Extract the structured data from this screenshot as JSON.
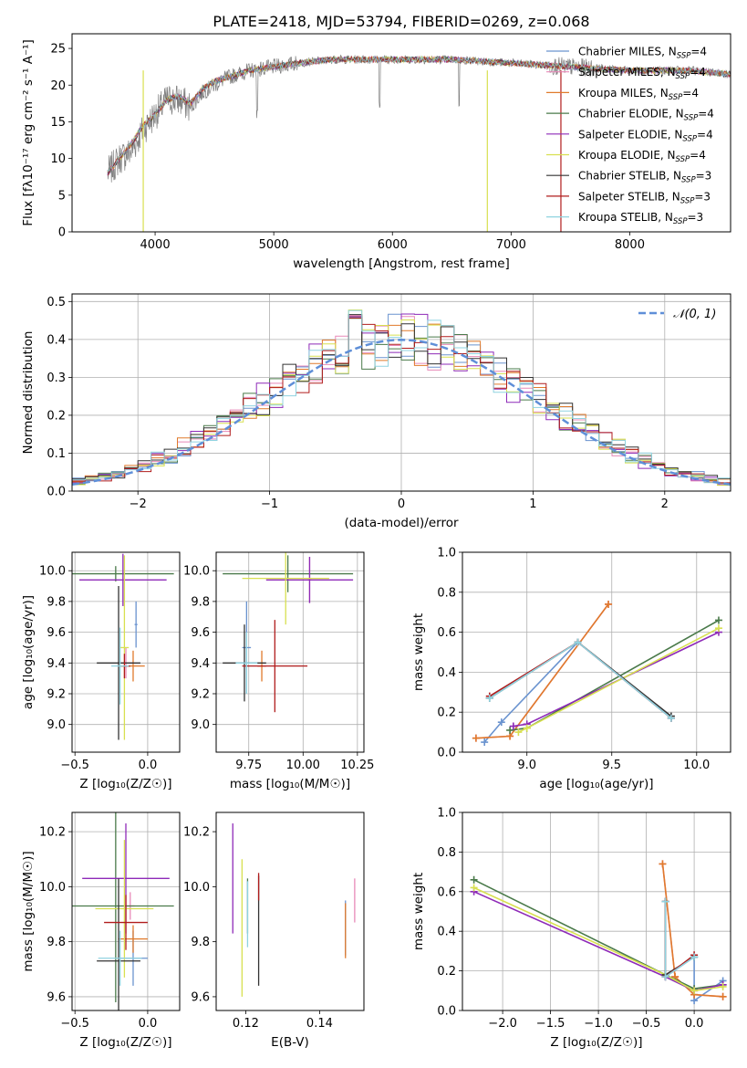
{
  "figure_title": "PLATE=2418, MJD=53794, FIBERID=0269, z=0.068",
  "colors": {
    "Chabrier MILES": "#6a93cf",
    "Salpeter MILES": "#e889b8",
    "Kroupa MILES": "#e07a2b",
    "Chabrier ELODIE": "#4a7a4a",
    "Salpeter ELODIE": "#8e2ab8",
    "Kroupa ELODIE": "#d8e050",
    "Chabrier STELIB": "#333333",
    "Salpeter STELIB": "#b01c1c",
    "Kroupa STELIB": "#8fd3e0",
    "data": "#808080",
    "gaussian": "#5f8fd8"
  },
  "chart_data": [
    {
      "id": "spectrum",
      "type": "line",
      "title": "PLATE=2418, MJD=53794, FIBERID=0269, z=0.068",
      "xlabel": "wavelength [Angstrom, rest frame]",
      "ylabel": "Flux [fλ10⁻¹⁷ erg cm⁻² s⁻¹ A⁻¹]",
      "xlim": [
        3300,
        8850
      ],
      "ylim": [
        0,
        27
      ],
      "xticks": [
        4000,
        5000,
        6000,
        7000,
        8000
      ],
      "yticks": [
        0,
        5,
        10,
        15,
        20,
        25
      ],
      "grid": false,
      "legend_position": "top-right",
      "legend": [
        "Chabrier MILES, N_SSP=4",
        "Salpeter MILES, N_SSP=4",
        "Kroupa MILES, N_SSP=4",
        "Chabrier ELODIE, N_SSP=4",
        "Salpeter ELODIE, N_SSP=4",
        "Kroupa ELODIE, N_SSP=4",
        "Chabrier STELIB, N_SSP=3",
        "Salpeter STELIB, N_SSP=3",
        "Kroupa STELIB, N_SSP=3"
      ],
      "data_curve": {
        "x": [
          3600,
          3700,
          3800,
          3900,
          4000,
          4100,
          4200,
          4300,
          4400,
          4500,
          4600,
          4800,
          5000,
          5200,
          5500,
          6000,
          6500,
          7000,
          7500,
          8000,
          8500,
          8850
        ],
        "y": [
          8,
          10,
          11,
          14,
          16,
          18,
          18,
          17,
          19,
          20,
          21,
          22,
          22.5,
          23,
          23.5,
          23.5,
          23.5,
          23,
          22.5,
          22,
          22,
          21.5
        ]
      },
      "model_curve": {
        "x": [
          3600,
          3700,
          3800,
          3900,
          4000,
          4100,
          4200,
          4300,
          4400,
          4500,
          4600,
          4800,
          5000,
          5200,
          5500,
          6000,
          6500,
          7000,
          7500,
          8000,
          8500,
          8850
        ],
        "y": [
          8,
          10,
          12,
          14.5,
          16,
          18,
          18.5,
          17.5,
          19.5,
          20.5,
          21,
          22,
          22.5,
          23,
          23.5,
          23.5,
          23.5,
          23,
          22.5,
          22,
          22,
          21.5
        ]
      },
      "vertical_drops": [
        {
          "x": 3900,
          "color": "Kroupa ELODIE"
        },
        {
          "x": 6800,
          "color": "Kroupa ELODIE"
        },
        {
          "x": 7420,
          "color": "Salpeter STELIB"
        }
      ]
    },
    {
      "id": "residuals",
      "type": "histogram",
      "xlabel": "(data-model)/error",
      "ylabel": "Normed distribution",
      "xlim": [
        -2.5,
        2.5
      ],
      "ylim": [
        0,
        0.52
      ],
      "xticks": [
        -2,
        -1,
        0,
        1,
        2
      ],
      "yticks": [
        0.0,
        0.1,
        0.2,
        0.3,
        0.4,
        0.5
      ],
      "grid": true,
      "legend": [
        "𝒩(0, 1)"
      ],
      "legend_position": "top-right",
      "bin_width": 0.1
    },
    {
      "id": "age_vs_Z",
      "type": "errorbar",
      "xlabel": "Z [log₁₀(Z/Z☉)]",
      "ylabel": "age [log₁₀(age/yr)]",
      "xlim": [
        -0.52,
        0.22
      ],
      "ylim": [
        8.82,
        10.12
      ],
      "xticks": [
        -0.5,
        0.0
      ],
      "yticks": [
        9.0,
        9.2,
        9.4,
        9.6,
        9.8,
        10.0
      ],
      "grid": true,
      "points": [
        {
          "name": "Chabrier MILES",
          "x": -0.08,
          "y": 9.65,
          "xerr": 0.01,
          "yerr": 0.15
        },
        {
          "name": "Salpeter MILES",
          "x": -0.15,
          "y": 9.4,
          "xerr": 0.05,
          "yerr": 0.1
        },
        {
          "name": "Kroupa MILES",
          "x": -0.1,
          "y": 9.38,
          "xerr": 0.08,
          "yerr": 0.1
        },
        {
          "name": "Chabrier ELODIE",
          "x": -0.22,
          "y": 9.98,
          "xerr": 0.4,
          "yerr": 0.05
        },
        {
          "name": "Salpeter ELODIE",
          "x": -0.17,
          "y": 9.94,
          "xerr": 0.3,
          "yerr": 0.17
        },
        {
          "name": "Kroupa ELODIE",
          "x": -0.16,
          "y": 9.5,
          "xerr": 0.03,
          "yerr": 0.6
        },
        {
          "name": "Chabrier STELIB",
          "x": -0.2,
          "y": 9.4,
          "xerr": 0.15,
          "yerr": 0.5
        },
        {
          "name": "Salpeter STELIB",
          "x": -0.16,
          "y": 9.38,
          "xerr": 0.04,
          "yerr": 0.08
        },
        {
          "name": "Kroupa STELIB",
          "x": -0.19,
          "y": 9.38,
          "xerr": 0.06,
          "yerr": 0.25
        }
      ]
    },
    {
      "id": "age_vs_mass",
      "type": "errorbar",
      "xlabel": "mass [log₁₀(M/M☉)]",
      "ylabel": "",
      "xlim": [
        9.6,
        10.28
      ],
      "ylim": [
        8.82,
        10.12
      ],
      "xticks": [
        9.75,
        10.0,
        10.25
      ],
      "yticks": [
        9.0,
        9.2,
        9.4,
        9.6,
        9.8,
        10.0
      ],
      "grid": true,
      "points": [
        {
          "name": "Chabrier MILES",
          "x": 9.74,
          "y": 9.5,
          "xerr": 0.02,
          "yerr": 0.3
        },
        {
          "name": "Salpeter MILES",
          "x": 10.03,
          "y": 9.94,
          "xerr": 0.01,
          "yerr": 0.15
        },
        {
          "name": "Kroupa MILES",
          "x": 9.81,
          "y": 9.38,
          "xerr": 0.02,
          "yerr": 0.1
        },
        {
          "name": "Chabrier ELODIE",
          "x": 9.93,
          "y": 9.98,
          "xerr": 0.3,
          "yerr": 0.12
        },
        {
          "name": "Salpeter ELODIE",
          "x": 10.03,
          "y": 9.94,
          "xerr": 0.2,
          "yerr": 0.15
        },
        {
          "name": "Kroupa ELODIE",
          "x": 9.92,
          "y": 9.95,
          "xerr": 0.2,
          "yerr": 0.3
        },
        {
          "name": "Chabrier STELIB",
          "x": 9.73,
          "y": 9.4,
          "xerr": 0.1,
          "yerr": 0.25
        },
        {
          "name": "Salpeter STELIB",
          "x": 9.87,
          "y": 9.38,
          "xerr": 0.15,
          "yerr": 0.3
        },
        {
          "name": "Kroupa STELIB",
          "x": 9.74,
          "y": 9.4,
          "xerr": 0.05,
          "yerr": 0.2
        }
      ]
    },
    {
      "id": "weight_vs_age",
      "type": "line",
      "xlabel": "age [log₁₀(age/yr)]",
      "ylabel": "mass weight",
      "xlim": [
        8.62,
        10.2
      ],
      "ylim": [
        0.0,
        1.0
      ],
      "xticks": [
        9.0,
        9.5,
        10.0
      ],
      "yticks": [
        0.0,
        0.2,
        0.4,
        0.6,
        0.8,
        1.0
      ],
      "grid": true,
      "series": [
        {
          "name": "Chabrier MILES",
          "x": [
            8.75,
            8.85,
            9.3,
            9.85
          ],
          "y": [
            0.05,
            0.15,
            0.55,
            0.17
          ]
        },
        {
          "name": "Salpeter MILES",
          "x": [
            8.7,
            8.9,
            9.48
          ],
          "y": [
            0.07,
            0.08,
            0.74
          ]
        },
        {
          "name": "Kroupa MILES",
          "x": [
            8.7,
            8.9,
            9.48
          ],
          "y": [
            0.07,
            0.08,
            0.74
          ]
        },
        {
          "name": "Chabrier ELODIE",
          "x": [
            8.9,
            9.0,
            10.13
          ],
          "y": [
            0.11,
            0.12,
            0.66
          ]
        },
        {
          "name": "Salpeter ELODIE",
          "x": [
            8.92,
            9.0,
            10.13
          ],
          "y": [
            0.13,
            0.14,
            0.6
          ]
        },
        {
          "name": "Kroupa ELODIE",
          "x": [
            8.95,
            9.0,
            10.13
          ],
          "y": [
            0.1,
            0.12,
            0.62
          ]
        },
        {
          "name": "Chabrier STELIB",
          "x": [
            8.78,
            9.3,
            9.85
          ],
          "y": [
            0.27,
            0.55,
            0.18
          ]
        },
        {
          "name": "Salpeter STELIB",
          "x": [
            8.78,
            9.3,
            9.85
          ],
          "y": [
            0.28,
            0.55,
            0.17
          ]
        },
        {
          "name": "Kroupa STELIB",
          "x": [
            8.78,
            9.3,
            9.85
          ],
          "y": [
            0.27,
            0.55,
            0.17
          ]
        }
      ]
    },
    {
      "id": "mass_vs_Z",
      "type": "errorbar",
      "xlabel": "Z [log₁₀(Z/Z☉)]",
      "ylabel": "mass [log₁₀(M/M☉)]",
      "xlim": [
        -0.52,
        0.22
      ],
      "ylim": [
        9.55,
        10.27
      ],
      "xticks": [
        -0.5,
        0.0
      ],
      "yticks": [
        9.6,
        9.8,
        10.0,
        10.2
      ],
      "grid": true,
      "points": [
        {
          "name": "Chabrier MILES",
          "x": -0.1,
          "y": 9.74,
          "xerr": 0.1,
          "yerr": 0.1
        },
        {
          "name": "Salpeter MILES",
          "x": -0.12,
          "y": 9.93,
          "xerr": 0.03,
          "yerr": 0.05
        },
        {
          "name": "Kroupa MILES",
          "x": -0.1,
          "y": 9.81,
          "xerr": 0.1,
          "yerr": 0.05
        },
        {
          "name": "Chabrier ELODIE",
          "x": -0.22,
          "y": 9.93,
          "xerr": 0.4,
          "yerr": 0.35
        },
        {
          "name": "Salpeter ELODIE",
          "x": -0.15,
          "y": 10.03,
          "xerr": 0.3,
          "yerr": 0.2
        },
        {
          "name": "Kroupa ELODIE",
          "x": -0.16,
          "y": 9.92,
          "xerr": 0.2,
          "yerr": 0.25
        },
        {
          "name": "Chabrier STELIB",
          "x": -0.2,
          "y": 9.73,
          "xerr": 0.15,
          "yerr": 0.3
        },
        {
          "name": "Salpeter STELIB",
          "x": -0.15,
          "y": 9.87,
          "xerr": 0.15,
          "yerr": 0.1
        },
        {
          "name": "Kroupa STELIB",
          "x": -0.19,
          "y": 9.74,
          "xerr": 0.15,
          "yerr": 0.1
        }
      ]
    },
    {
      "id": "mass_vs_ebv",
      "type": "errorbar",
      "xlabel": "E(B-V)",
      "ylabel": "",
      "xlim": [
        0.112,
        0.152
      ],
      "ylim": [
        9.55,
        10.27
      ],
      "xticks": [
        0.12,
        0.14
      ],
      "yticks": [
        9.6,
        9.8,
        10.0,
        10.2
      ],
      "grid": false,
      "points": [
        {
          "name": "Chabrier MILES",
          "x": 0.147,
          "y": 9.85,
          "xerr": 0.0,
          "yerr": 0.1
        },
        {
          "name": "Salpeter MILES",
          "x": 0.1495,
          "y": 9.95,
          "xerr": 0.0,
          "yerr": 0.08
        },
        {
          "name": "Kroupa MILES",
          "x": 0.147,
          "y": 9.84,
          "xerr": 0.0,
          "yerr": 0.1
        },
        {
          "name": "Chabrier ELODIE",
          "x": 0.1205,
          "y": 9.93,
          "xerr": 0.0,
          "yerr": 0.1
        },
        {
          "name": "Salpeter ELODIE",
          "x": 0.1165,
          "y": 10.03,
          "xerr": 0.0,
          "yerr": 0.2
        },
        {
          "name": "Kroupa ELODIE",
          "x": 0.119,
          "y": 9.85,
          "xerr": 0.0,
          "yerr": 0.25
        },
        {
          "name": "Chabrier STELIB",
          "x": 0.1235,
          "y": 9.84,
          "xerr": 0.0,
          "yerr": 0.2
        },
        {
          "name": "Salpeter STELIB",
          "x": 0.1235,
          "y": 10.0,
          "xerr": 0.0,
          "yerr": 0.05
        },
        {
          "name": "Kroupa STELIB",
          "x": 0.1205,
          "y": 9.9,
          "xerr": 0.0,
          "yerr": 0.12
        }
      ]
    },
    {
      "id": "weight_vs_Z",
      "type": "line",
      "xlabel": "Z [log₁₀(Z/Z☉)]",
      "ylabel": "mass weight",
      "xlim": [
        -2.42,
        0.38
      ],
      "ylim": [
        0.0,
        1.0
      ],
      "xticks": [
        -2.0,
        -1.5,
        -1.0,
        -0.5,
        0.0
      ],
      "yticks": [
        0.0,
        0.2,
        0.4,
        0.6,
        0.8,
        1.0
      ],
      "grid": true,
      "series": [
        {
          "name": "Chabrier MILES",
          "x": [
            -0.3,
            -0.3,
            0.0,
            0.0,
            0.3
          ],
          "y": [
            0.55,
            0.17,
            0.27,
            0.05,
            0.15
          ]
        },
        {
          "name": "Salpeter MILES",
          "x": [
            -0.33,
            -0.2,
            0.0,
            0.3
          ],
          "y": [
            0.74,
            0.17,
            0.08,
            0.07
          ]
        },
        {
          "name": "Kroupa MILES",
          "x": [
            -0.33,
            -0.2,
            0.0,
            0.3
          ],
          "y": [
            0.74,
            0.17,
            0.08,
            0.07
          ]
        },
        {
          "name": "Chabrier ELODIE",
          "x": [
            -2.3,
            -0.3,
            0.0,
            0.3
          ],
          "y": [
            0.66,
            0.18,
            0.11,
            0.13
          ]
        },
        {
          "name": "Salpeter ELODIE",
          "x": [
            -2.3,
            -0.3,
            0.0,
            0.3
          ],
          "y": [
            0.6,
            0.17,
            0.1,
            0.13
          ]
        },
        {
          "name": "Kroupa ELODIE",
          "x": [
            -2.3,
            -0.3,
            0.0,
            0.3
          ],
          "y": [
            0.62,
            0.18,
            0.1,
            0.12
          ]
        },
        {
          "name": "Chabrier STELIB",
          "x": [
            -0.3,
            -0.3,
            0.0
          ],
          "y": [
            0.55,
            0.18,
            0.27
          ]
        },
        {
          "name": "Salpeter STELIB",
          "x": [
            -0.3,
            -0.3,
            0.0
          ],
          "y": [
            0.55,
            0.17,
            0.28
          ]
        },
        {
          "name": "Kroupa STELIB",
          "x": [
            -0.3,
            -0.3,
            0.0
          ],
          "y": [
            0.55,
            0.17,
            0.27
          ]
        }
      ]
    }
  ]
}
